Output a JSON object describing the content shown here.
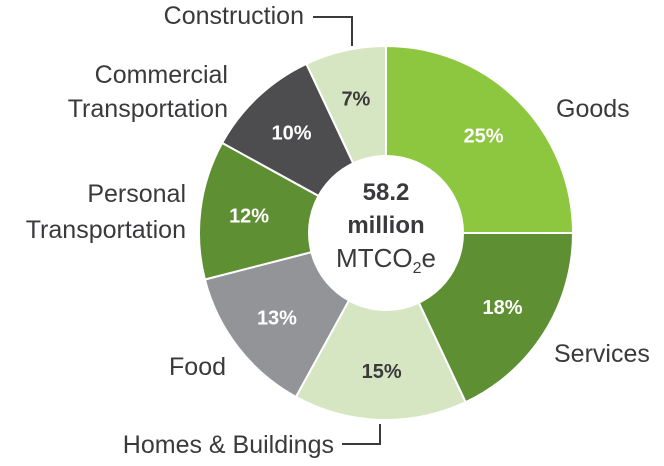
{
  "chart_data": {
    "type": "pie",
    "donut": true,
    "center_text": {
      "value": "58.2",
      "scale": "million",
      "unit_prefix": "MTCO",
      "unit_subscript": "2",
      "unit_suffix": "e"
    },
    "slices": [
      {
        "label": "Goods",
        "value": 25,
        "value_label": "25%",
        "color": "#8dc63f",
        "text_color": "#ffffff"
      },
      {
        "label": "Services",
        "value": 18,
        "value_label": "18%",
        "color": "#5e8f32",
        "text_color": "#ffffff"
      },
      {
        "label": "Homes & Buildings",
        "value": 15,
        "value_label": "15%",
        "color": "#d6e6c2",
        "text_color": "#3a3a3c"
      },
      {
        "label": "Food",
        "value": 13,
        "value_label": "13%",
        "color": "#929497",
        "text_color": "#ffffff"
      },
      {
        "label": "Personal Transportation",
        "label_lines": [
          "Personal",
          "Transportation"
        ],
        "value": 12,
        "value_label": "12%",
        "color": "#5e8f32",
        "text_color": "#ffffff"
      },
      {
        "label": "Commercial Transportation",
        "label_lines": [
          "Commercial",
          "Transportation"
        ],
        "value": 10,
        "value_label": "10%",
        "color": "#4d4d4f",
        "text_color": "#ffffff"
      },
      {
        "label": "Construction",
        "value": 7,
        "value_label": "7%",
        "color": "#d6e6c2",
        "text_color": "#3a3a3c"
      }
    ],
    "start": "12 o'clock",
    "direction": "clockwise"
  }
}
